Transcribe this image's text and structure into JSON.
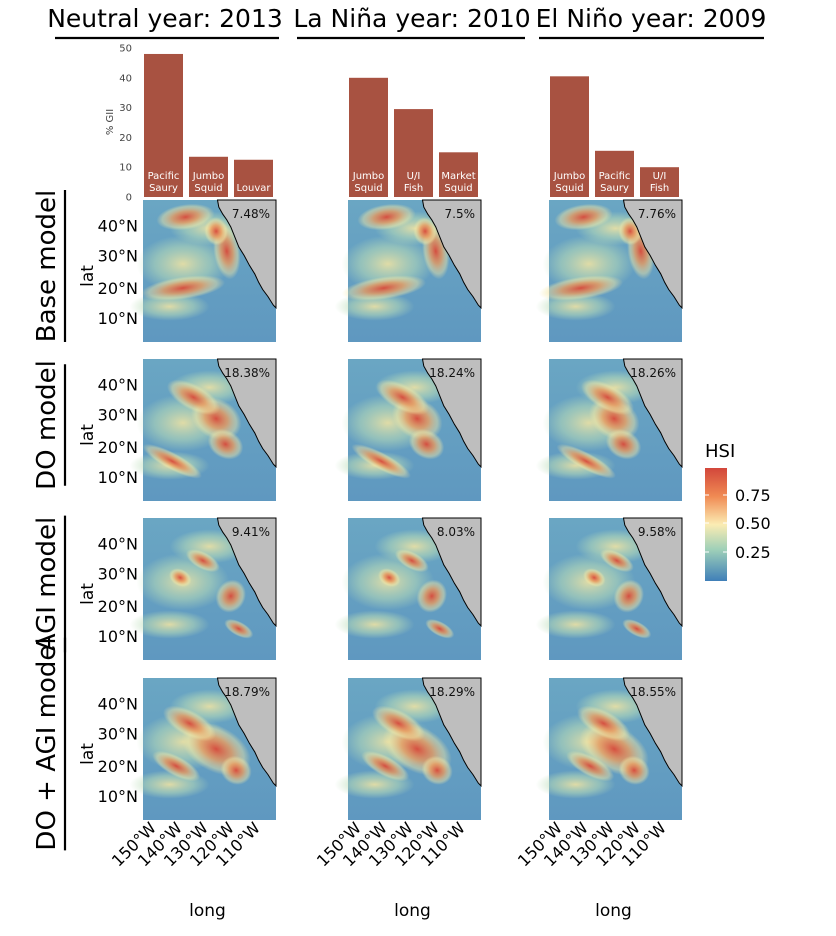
{
  "chart_data": {
    "type": "bar",
    "columns": [
      {
        "title": "Neutral year: 2013",
        "bars": [
          {
            "species": [
              "Pacific",
              "Saury"
            ],
            "value": 48
          },
          {
            "species": [
              "Jumbo",
              "Squid"
            ],
            "value": 13.5
          },
          {
            "species": [
              "Louvar"
            ],
            "value": 12.5
          }
        ],
        "map_percentages": [
          "7.48%",
          "18.38%",
          "9.41%",
          "18.79%"
        ]
      },
      {
        "title": "La Niña year: 2010",
        "bars": [
          {
            "species": [
              "Jumbo",
              "Squid"
            ],
            "value": 40
          },
          {
            "species": [
              "U/I",
              "Fish"
            ],
            "value": 29.5
          },
          {
            "species": [
              "Market",
              "Squid"
            ],
            "value": 15
          }
        ],
        "map_percentages": [
          "7.5%",
          "18.24%",
          "8.03%",
          "18.29%"
        ]
      },
      {
        "title": "El Niño year: 2009",
        "bars": [
          {
            "species": [
              "Jumbo",
              "Squid"
            ],
            "value": 40.5
          },
          {
            "species": [
              "Pacific",
              "Saury"
            ],
            "value": 15.5
          },
          {
            "species": [
              "U/I",
              "Fish"
            ],
            "value": 10
          }
        ],
        "map_percentages": [
          "7.76%",
          "18.26%",
          "9.58%",
          "18.55%"
        ]
      }
    ],
    "bar_ylabel": "% GII",
    "bar_ylim": [
      0,
      50
    ],
    "bar_yticks": [
      "0",
      "10",
      "20",
      "30",
      "40",
      "50"
    ],
    "bar_color": "#a85241",
    "rows": [
      "Base model",
      "DO model",
      "AGI model",
      "DO + AGI model"
    ],
    "map_ylabel": "lat",
    "map_xlabel": "long",
    "lat_ticks": [
      "10°N",
      "20°N",
      "30°N",
      "40°N"
    ],
    "lon_ticks": [
      "150°W",
      "140°W",
      "130°W",
      "120°W",
      "110°W"
    ],
    "legend": {
      "title": "HSI",
      "ticks": [
        "0.75",
        "0.50",
        "0.25"
      ],
      "colors": [
        "#d73027",
        "#fc8d59",
        "#fee090",
        "#ffffbf",
        "#e0f3f8",
        "#91bfdb",
        "#4575b4"
      ]
    }
  }
}
